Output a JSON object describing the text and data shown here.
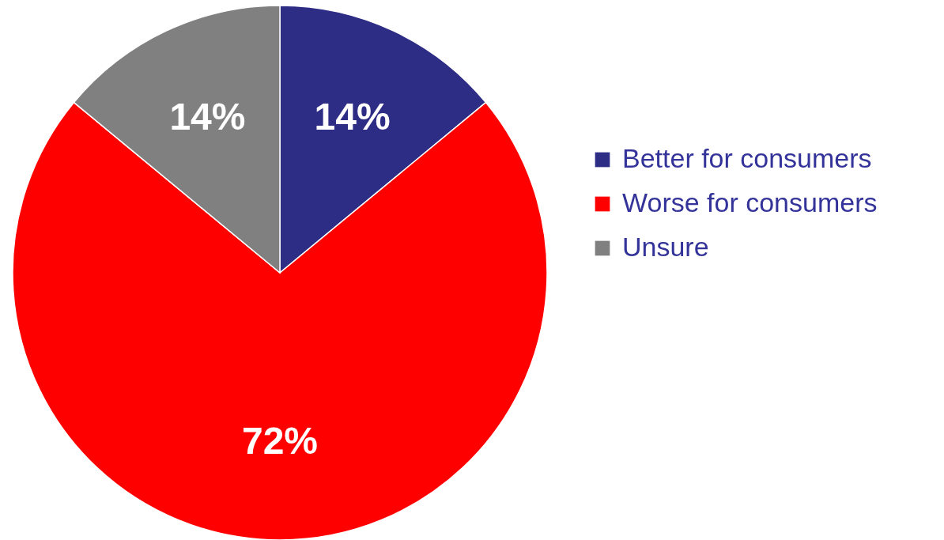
{
  "chart_data": {
    "type": "pie",
    "categories": [
      "Better for consumers",
      "Worse for consumers",
      "Unsure"
    ],
    "values": [
      14,
      72,
      14
    ],
    "colors": [
      "#2e2d86",
      "#ff0000",
      "#808080"
    ],
    "value_labels": [
      "14%",
      "72%",
      "14%"
    ],
    "legend": "right"
  }
}
